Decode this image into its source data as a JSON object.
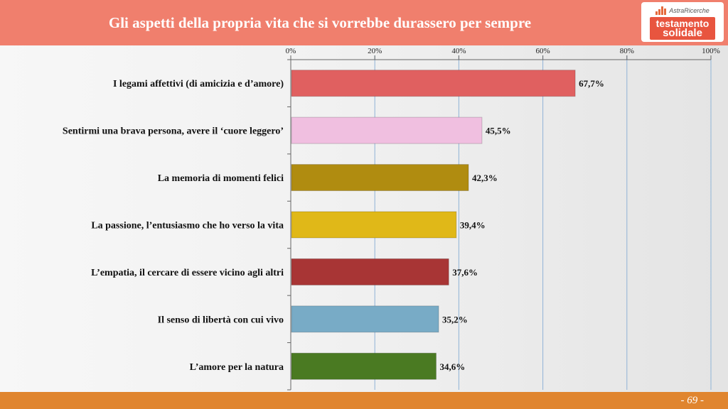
{
  "header": {
    "title": "Gli aspetti della propria vita che si vorrebbe durassero per sempre",
    "logo": {
      "brand": "AstraRicerche",
      "line1": "testamento",
      "line2": "solidale"
    }
  },
  "footer": {
    "page": "- 69 -"
  },
  "colors": {
    "header_bg": "#f07f6d",
    "footer_bg": "#e0852f",
    "gridline": "#8fb3d6"
  },
  "chart_data": {
    "type": "bar",
    "orientation": "horizontal",
    "title": "Gli aspetti della propria vita che si vorrebbe durassero per sempre",
    "categories": [
      "I legami affettivi (di amicizia e d’amore)",
      "Sentirmi una brava persona, avere il ‘cuore leggero’",
      "La memoria di momenti felici",
      "La passione, l’entusiasmo che ho verso la vita",
      "L’empatia, il cercare di essere vicino agli altri",
      "Il senso di libertà con cui vivo",
      "L’amore per la natura"
    ],
    "values": [
      67.7,
      45.5,
      42.3,
      39.4,
      37.6,
      35.2,
      34.6
    ],
    "value_labels": [
      "67,7%",
      "45,5%",
      "42,3%",
      "39,4%",
      "37,6%",
      "35,2%",
      "34,6%"
    ],
    "bar_colors": [
      "#e06060",
      "#f0bfe0",
      "#b08c10",
      "#e0b818",
      "#a83535",
      "#78abc6",
      "#4a7a22"
    ],
    "xlim": [
      0,
      100
    ],
    "xticks": [
      "0%",
      "20%",
      "40%",
      "60%",
      "80%",
      "100%"
    ],
    "xtick_values": [
      0,
      20,
      40,
      60,
      80,
      100
    ],
    "axis_position": "top",
    "grid": true
  }
}
